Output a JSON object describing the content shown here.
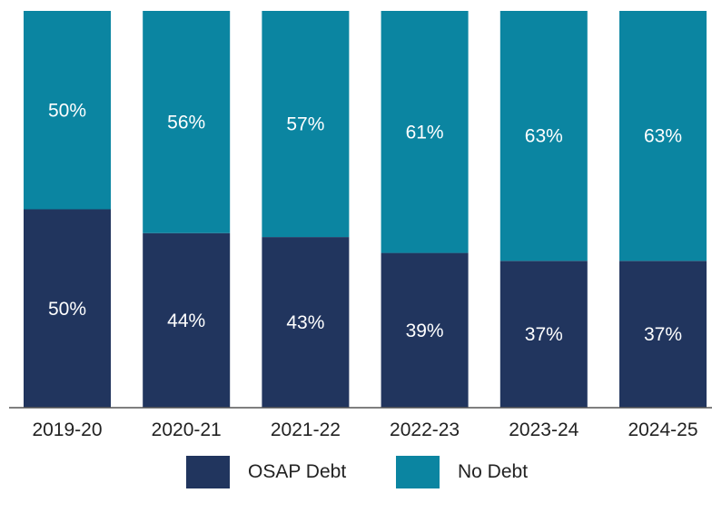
{
  "chart_data": {
    "type": "bar",
    "stacked": true,
    "percent_stacked": true,
    "categories": [
      "2019-20",
      "2020-21",
      "2021-22",
      "2022-23",
      "2023-24",
      "2024-25"
    ],
    "series": [
      {
        "name": "OSAP Debt",
        "values": [
          50,
          44,
          43,
          39,
          37,
          37
        ],
        "labels": [
          "50%",
          "44%",
          "43%",
          "39%",
          "37%",
          "37%"
        ]
      },
      {
        "name": "No Debt",
        "values": [
          50,
          56,
          57,
          61,
          63,
          63
        ],
        "labels": [
          "50%",
          "56%",
          "57%",
          "61%",
          "63%",
          "63%"
        ]
      }
    ],
    "title": "",
    "xlabel": "",
    "ylabel": "",
    "ylim": [
      0,
      100
    ],
    "grid": false,
    "legend_position": "bottom"
  },
  "colors": {
    "osap_debt": "#21355e",
    "no_debt": "#0b85a1",
    "axis": "#555555"
  },
  "legend": {
    "items": [
      {
        "label": "OSAP Debt"
      },
      {
        "label": "No Debt"
      }
    ]
  }
}
